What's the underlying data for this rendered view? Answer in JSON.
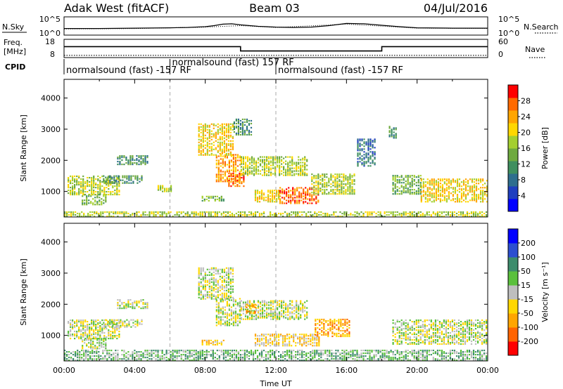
{
  "header": {
    "radar": "Adak West (fitACF)",
    "beam": "Beam 03",
    "date": "04/Jul/2016"
  },
  "noise_panel": {
    "left_label": "N.Sky",
    "left_ticks": [
      "10^5",
      "10^0"
    ],
    "right_label": "N.Search",
    "right_ticks": [
      "10^5",
      "10^0"
    ],
    "series": [
      {
        "name": "N.Sky",
        "style": "solid",
        "x": [
          0,
          2,
          4,
          6,
          7,
          8,
          8.5,
          9,
          9.5,
          10,
          11,
          12,
          13,
          14,
          15,
          16,
          17,
          18,
          19,
          20,
          22,
          24
        ],
        "y": [
          1.8,
          1.8,
          1.9,
          2.0,
          2.1,
          2.3,
          2.6,
          3.0,
          3.1,
          2.8,
          2.4,
          2.2,
          2.1,
          2.2,
          2.6,
          3.2,
          3.1,
          2.7,
          2.3,
          2.0,
          1.9,
          1.9
        ]
      },
      {
        "name": "N.Search",
        "style": "dotted",
        "x": [
          0,
          4,
          8,
          10,
          12,
          16,
          20,
          24
        ],
        "y": [
          1.7,
          1.8,
          2.2,
          2.6,
          2.1,
          3.0,
          1.9,
          1.8
        ]
      }
    ]
  },
  "freq_panel": {
    "left_label": "Freq.",
    "left_unit": "[MHz]",
    "left_ticks": [
      "18",
      "8"
    ],
    "right_label": "Nave",
    "right_ticks": [
      "60",
      "0"
    ],
    "cpid_label": "CPID",
    "freq_steps": [
      {
        "from": 0,
        "to": 10,
        "mhz": 14.3
      },
      {
        "from": 10,
        "to": 18,
        "mhz": 11.2
      },
      {
        "from": 18,
        "to": 24,
        "mhz": 14.3
      }
    ],
    "nave": 12,
    "modes": [
      {
        "text": "normalsound (fast) -157 RF",
        "start": 0
      },
      {
        "text": "normalsound (fast) 157 RF",
        "start": 6
      },
      {
        "text": "normalsound (fast) -157 RF",
        "start": 12
      }
    ]
  },
  "chart_data": [
    {
      "type": "heatmap",
      "name": "Power",
      "ylabel": "Slant Range [km]",
      "ylim": [
        180,
        4600
      ],
      "yticks": [
        1000,
        2000,
        3000,
        4000
      ],
      "xlim": [
        0,
        24
      ],
      "colorbar": {
        "label": "Power [dB]",
        "range": [
          0,
          32
        ],
        "ticks": [
          4,
          8,
          12,
          16,
          20,
          24,
          28
        ],
        "colors": [
          "#0000ff",
          "#1f3fbf",
          "#2e6e8e",
          "#3f8f5f",
          "#6faa3f",
          "#a4cf30",
          "#ffd700",
          "#ffa500",
          "#ff6a00",
          "#ff0000"
        ]
      },
      "markers": [
        6,
        12
      ],
      "regions": [
        {
          "t0": 0.2,
          "t1": 3.2,
          "r0": 880,
          "r1": 1480,
          "level": 5
        },
        {
          "t0": 1.0,
          "t1": 2.4,
          "r0": 560,
          "r1": 900,
          "level": 4
        },
        {
          "t0": 2.2,
          "t1": 4.4,
          "r0": 1250,
          "r1": 1500,
          "level": 3
        },
        {
          "t0": 3.0,
          "t1": 4.8,
          "r0": 1850,
          "r1": 2150,
          "level": 3
        },
        {
          "t0": 5.3,
          "t1": 6.1,
          "r0": 980,
          "r1": 1180,
          "level": 5
        },
        {
          "t0": 7.6,
          "t1": 9.6,
          "r0": 2150,
          "r1": 3150,
          "level": 6
        },
        {
          "t0": 8.6,
          "t1": 10.0,
          "r0": 1300,
          "r1": 2200,
          "level": 7
        },
        {
          "t0": 9.3,
          "t1": 10.2,
          "r0": 1150,
          "r1": 1600,
          "level": 8
        },
        {
          "t0": 10.0,
          "t1": 13.8,
          "r0": 1500,
          "r1": 2100,
          "level": 5
        },
        {
          "t0": 9.6,
          "t1": 10.6,
          "r0": 2800,
          "r1": 3300,
          "level": 3
        },
        {
          "t0": 7.8,
          "t1": 9.0,
          "r0": 680,
          "r1": 850,
          "level": 4
        },
        {
          "t0": 10.8,
          "t1": 12.2,
          "r0": 650,
          "r1": 1050,
          "level": 6
        },
        {
          "t0": 12.2,
          "t1": 14.4,
          "r0": 600,
          "r1": 1100,
          "level": 8
        },
        {
          "t0": 14.0,
          "t1": 16.4,
          "r0": 900,
          "r1": 1550,
          "level": 5
        },
        {
          "t0": 16.6,
          "t1": 17.6,
          "r0": 1800,
          "r1": 2700,
          "level": 2
        },
        {
          "t0": 18.6,
          "t1": 20.2,
          "r0": 900,
          "r1": 1500,
          "level": 4
        },
        {
          "t0": 20.2,
          "t1": 24.0,
          "r0": 650,
          "r1": 1400,
          "level": 6
        },
        {
          "t0": 18.4,
          "t1": 18.8,
          "r0": 2700,
          "r1": 3100,
          "level": 3
        },
        {
          "t0": 0.0,
          "t1": 24.0,
          "r0": 180,
          "r1": 320,
          "level": 5
        }
      ]
    },
    {
      "type": "heatmap",
      "name": "Velocity",
      "ylabel": "Slant Range [km]",
      "ylim": [
        180,
        4600
      ],
      "yticks": [
        1000,
        2000,
        3000,
        4000
      ],
      "xlim": [
        0,
        24
      ],
      "xlabel": "Time UT",
      "xticks": [
        "00:00",
        "04:00",
        "08:00",
        "12:00",
        "16:00",
        "20:00",
        "00:00"
      ],
      "colorbar": {
        "label": "Velocity [m s⁻¹]",
        "range": [
          -250,
          250
        ],
        "ticks": [
          "200",
          "100",
          "50",
          "15",
          "-15",
          "-50",
          "-100",
          "-200"
        ],
        "colors": [
          "#0000ff",
          "#2c4fd0",
          "#3d8c6c",
          "#5ac03c",
          "#bebebe",
          "#ffd700",
          "#ffa500",
          "#ff6400",
          "#ff0000"
        ]
      },
      "markers": [
        6,
        12
      ],
      "regions": [
        {
          "t0": 0.2,
          "t1": 3.2,
          "r0": 880,
          "r1": 1480,
          "level": 4
        },
        {
          "t0": 1.0,
          "t1": 2.4,
          "r0": 560,
          "r1": 900,
          "level": 4
        },
        {
          "t0": 2.2,
          "t1": 4.4,
          "r0": 1250,
          "r1": 1500,
          "level": 4
        },
        {
          "t0": 3.0,
          "t1": 4.8,
          "r0": 1850,
          "r1": 2150,
          "level": 4
        },
        {
          "t0": 7.6,
          "t1": 9.6,
          "r0": 2150,
          "r1": 3150,
          "level": 4
        },
        {
          "t0": 8.6,
          "t1": 10.0,
          "r0": 1300,
          "r1": 2200,
          "level": 4
        },
        {
          "t0": 10.0,
          "t1": 13.8,
          "r0": 1500,
          "r1": 2100,
          "level": 4
        },
        {
          "t0": 10.3,
          "t1": 10.8,
          "r0": 1700,
          "r1": 2000,
          "level": 6
        },
        {
          "t0": 7.8,
          "t1": 9.0,
          "r0": 680,
          "r1": 850,
          "level": 5
        },
        {
          "t0": 10.8,
          "t1": 14.4,
          "r0": 650,
          "r1": 1050,
          "level": 5
        },
        {
          "t0": 14.2,
          "t1": 16.2,
          "r0": 950,
          "r1": 1500,
          "level": 6
        },
        {
          "t0": 18.6,
          "t1": 24.0,
          "r0": 700,
          "r1": 1500,
          "level": 4
        },
        {
          "t0": 0.0,
          "t1": 24.0,
          "r0": 180,
          "r1": 500,
          "level": 3
        }
      ]
    }
  ]
}
